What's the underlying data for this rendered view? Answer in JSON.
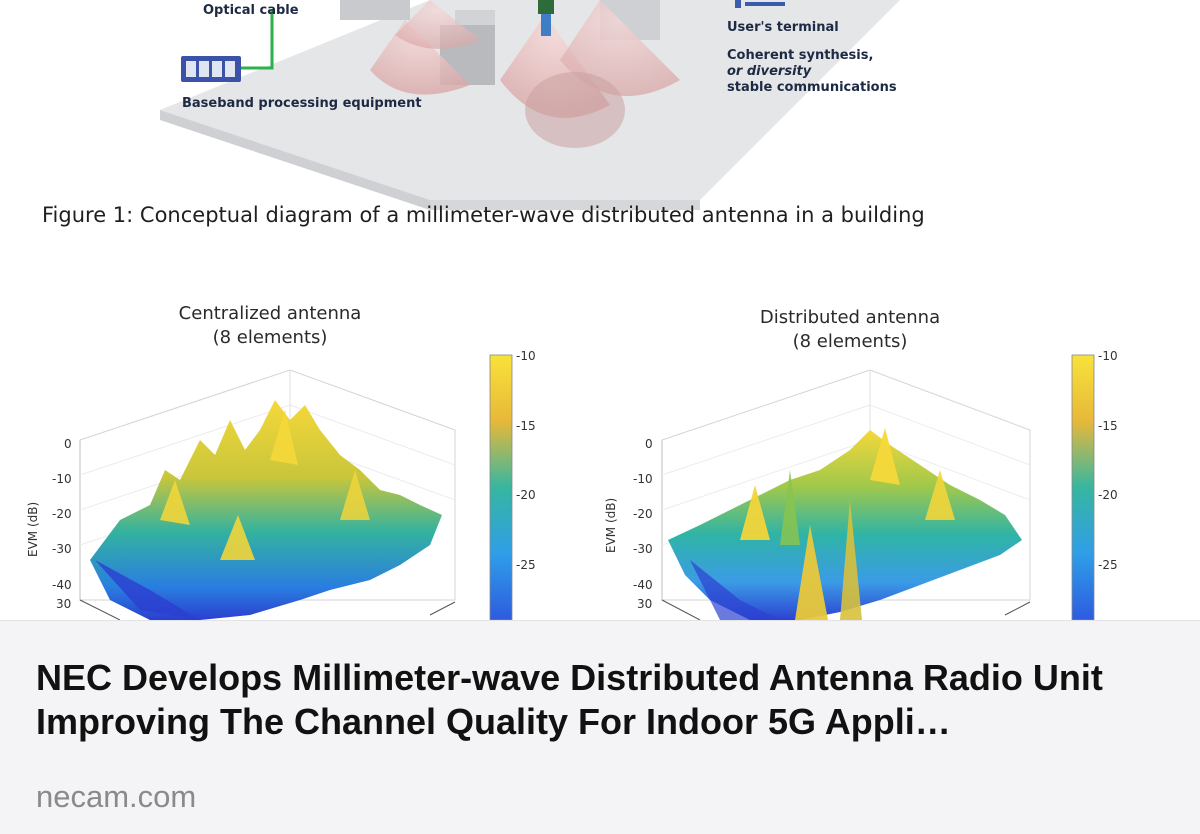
{
  "diagram": {
    "optical_cable": "Optical cable",
    "baseband": "Baseband processing equipment",
    "users_terminal": "User's terminal",
    "coherent_line1": "Coherent synthesis,",
    "coherent_line2": "or diversity",
    "coherent_line3": "stable communications"
  },
  "figure_caption": "Figure 1: Conceptual diagram of a millimeter-wave distributed antenna in a building",
  "plots": {
    "left": {
      "title_line1": "Centralized antenna",
      "title_line2": "(8 elements)"
    },
    "right": {
      "title_line1": "Distributed antenna",
      "title_line2": "(8 elements)"
    },
    "ylabel": "EVM (dB)",
    "z_ticks": [
      "0",
      "-10",
      "-20",
      "-30",
      "-40"
    ],
    "x_tick": "30",
    "colorbar_ticks": [
      "-10",
      "-15",
      "-20",
      "-25"
    ],
    "colors": {
      "low": "#2a3fd0",
      "mid": "#21b3a0",
      "high": "#f2d233"
    }
  },
  "card": {
    "title": "NEC Develops Millimeter-wave Distributed Antenna Radio Unit Improving The Channel Quality For Indoor 5G Appli…",
    "domain": "necam.com"
  }
}
